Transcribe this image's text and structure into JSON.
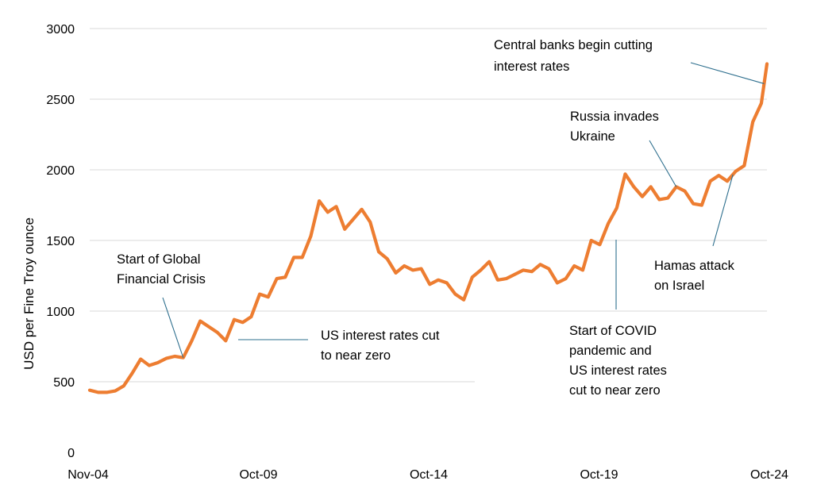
{
  "chart_data": {
    "type": "line",
    "title": "",
    "ylabel": "USD per Fine Troy ounce",
    "xlabel": "",
    "ylim": [
      0,
      3000
    ],
    "yticks": [
      0,
      500,
      1000,
      1500,
      2000,
      2500,
      3000
    ],
    "xlim": [
      "2004-11",
      "2024-10"
    ],
    "xticks": [
      "Nov-04",
      "Oct-09",
      "Oct-14",
      "Oct-19",
      "Oct-24"
    ],
    "grid": "horizontal",
    "series": [
      {
        "color": "#ed7d31",
        "x": [
          "2004-11",
          "2005-02",
          "2005-05",
          "2005-08",
          "2005-11",
          "2006-02",
          "2006-05",
          "2006-08",
          "2006-11",
          "2007-02",
          "2007-05",
          "2007-08",
          "2007-11",
          "2008-02",
          "2008-05",
          "2008-08",
          "2008-11",
          "2009-02",
          "2009-05",
          "2009-08",
          "2009-11",
          "2010-02",
          "2010-05",
          "2010-08",
          "2010-11",
          "2011-02",
          "2011-05",
          "2011-08",
          "2011-11",
          "2012-02",
          "2012-05",
          "2012-08",
          "2012-11",
          "2013-02",
          "2013-05",
          "2013-08",
          "2013-11",
          "2014-02",
          "2014-05",
          "2014-08",
          "2014-11",
          "2015-02",
          "2015-05",
          "2015-08",
          "2015-11",
          "2016-02",
          "2016-05",
          "2016-08",
          "2016-11",
          "2017-02",
          "2017-05",
          "2017-08",
          "2017-11",
          "2018-02",
          "2018-05",
          "2018-08",
          "2018-11",
          "2019-02",
          "2019-05",
          "2019-08",
          "2019-11",
          "2020-02",
          "2020-05",
          "2020-08",
          "2020-11",
          "2021-02",
          "2021-05",
          "2021-08",
          "2021-11",
          "2022-02",
          "2022-05",
          "2022-08",
          "2022-11",
          "2023-02",
          "2023-05",
          "2023-08",
          "2023-11",
          "2024-02",
          "2024-05",
          "2024-08",
          "2024-10"
        ],
        "values": [
          440,
          425,
          425,
          435,
          470,
          560,
          660,
          615,
          635,
          665,
          680,
          670,
          790,
          930,
          890,
          850,
          790,
          940,
          920,
          960,
          1120,
          1100,
          1230,
          1240,
          1380,
          1380,
          1530,
          1780,
          1700,
          1740,
          1580,
          1650,
          1720,
          1630,
          1420,
          1370,
          1270,
          1320,
          1290,
          1300,
          1190,
          1220,
          1200,
          1120,
          1080,
          1240,
          1290,
          1350,
          1220,
          1230,
          1260,
          1290,
          1280,
          1330,
          1300,
          1200,
          1230,
          1320,
          1290,
          1500,
          1470,
          1620,
          1730,
          1970,
          1880,
          1810,
          1880,
          1790,
          1800,
          1880,
          1850,
          1760,
          1750,
          1920,
          1960,
          1920,
          1990,
          2030,
          2340,
          2470,
          2750
        ]
      }
    ],
    "annotations": [
      {
        "lines": [
          "Start of Global",
          "Financial Crisis"
        ],
        "target": "2007-08"
      },
      {
        "lines": [
          "US interest rates cut",
          "to near zero"
        ],
        "target": "2008-12"
      },
      {
        "lines": [
          "Start of COVID",
          "pandemic and",
          "US interest rates",
          "cut to near zero"
        ],
        "target": "2020-03"
      },
      {
        "lines": [
          "Russia invades",
          "Ukraine"
        ],
        "target": "2022-02"
      },
      {
        "lines": [
          "Hamas attack",
          "on Israel"
        ],
        "target": "2023-10"
      },
      {
        "lines": [
          "Central banks begin cutting",
          "interest rates"
        ],
        "target": "2024-09"
      }
    ]
  }
}
